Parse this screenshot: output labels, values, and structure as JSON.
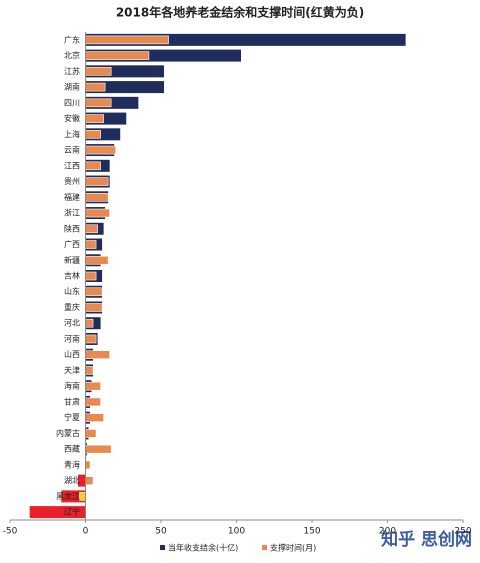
{
  "chart_data": {
    "type": "bar",
    "orientation": "horizontal",
    "overlay": true,
    "title": "2018年各地养老金结余和支撑时间(红黄为负)",
    "categories": [
      "广东",
      "北京",
      "江苏",
      "湖南",
      "四川",
      "安徽",
      "上海",
      "云南",
      "江西",
      "贵州",
      "福建",
      "浙江",
      "陕西",
      "广西",
      "新疆",
      "吉林",
      "山东",
      "重庆",
      "河北",
      "河南",
      "山西",
      "天津",
      "海南",
      "甘肃",
      "宁夏",
      "内蒙古",
      "西藏",
      "青海",
      "湖北",
      "黑龙江",
      "辽宁"
    ],
    "series": [
      {
        "name": "当年收支结余(十亿)",
        "color": "#1f2d5c",
        "negative_color": "#e8202a",
        "values": [
          212,
          103,
          52,
          52,
          35,
          27,
          23,
          19,
          16,
          16,
          15,
          13,
          12,
          11,
          10,
          11,
          11,
          11,
          10,
          8,
          5,
          5,
          4,
          3,
          3,
          2,
          1,
          0.3,
          -5,
          -16,
          -37
        ]
      },
      {
        "name": "支撑时间(月)",
        "color": "#e8894f",
        "negative_color": "#f5d020",
        "values": [
          55,
          42,
          17,
          13,
          17,
          12,
          10,
          20,
          10,
          15,
          15,
          16,
          8,
          7,
          15,
          7,
          11,
          11,
          5,
          7,
          16,
          5,
          10,
          10,
          12,
          7,
          17,
          3,
          5,
          -4,
          null
        ]
      }
    ],
    "xlim": [
      -50,
      250
    ],
    "xticks": [
      -50,
      0,
      50,
      100,
      150,
      200,
      250
    ],
    "grid": false,
    "legend": "bottom",
    "watermark": "知乎 思创网"
  }
}
